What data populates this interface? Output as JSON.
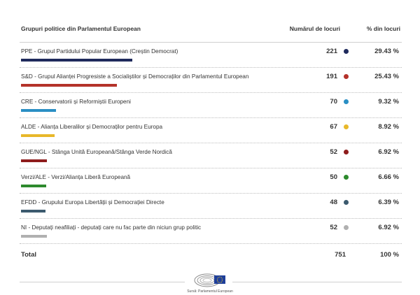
{
  "table": {
    "header": {
      "name": "Grupuri politice din Parlamentul European",
      "seats": "Numărul de locuri",
      "pct": "% din locuri"
    },
    "rows": [
      {
        "name": "PPE - Grupul Partidului Popular European (Creștin Democrat)",
        "seats": "221",
        "pct": "29.43 %",
        "color": "#1f2a5c",
        "bar_fraction": 0.2943
      },
      {
        "name": "S&D - Grupul Alianței Progresiste a Socialiștilor și Democraților din Parlamentul European",
        "seats": "191",
        "pct": "25.43 %",
        "color": "#b4322a",
        "bar_fraction": 0.2543
      },
      {
        "name": "CRE - Conservatorii și Reformiștii Europeni",
        "seats": "70",
        "pct": "9.32 %",
        "color": "#2a8fc4",
        "bar_fraction": 0.0932
      },
      {
        "name": "ALDE - Alianța Liberalilor și Democraților pentru Europa",
        "seats": "67",
        "pct": "8.92 %",
        "color": "#e8b82a",
        "bar_fraction": 0.0892
      },
      {
        "name": "GUE/NGL - Stânga Unită Europeană/Stânga Verde Nordică",
        "seats": "52",
        "pct": "6.92 %",
        "color": "#8e1c1c",
        "bar_fraction": 0.0692
      },
      {
        "name": "Verzi/ALE - Verzi/Alianța Liberă Europeană",
        "seats": "50",
        "pct": "6.66 %",
        "color": "#2d8a2d",
        "bar_fraction": 0.0666
      },
      {
        "name": "EFDD - Grupului Europa Libertății și Democrației Directe",
        "seats": "48",
        "pct": "6.39 %",
        "color": "#3c5a6e",
        "bar_fraction": 0.0639
      },
      {
        "name": "NI - Deputați neafiliați - deputați care nu fac parte din niciun grup politic",
        "seats": "52",
        "pct": "6.92 %",
        "color": "#b0b0b0",
        "bar_fraction": 0.0692
      }
    ],
    "total": {
      "label": "Total",
      "seats": "751",
      "pct": "100 %"
    }
  },
  "footer": {
    "caption": "Sursă: Parlamentul European",
    "logo_icon": "european-parliament-logo-icon"
  }
}
